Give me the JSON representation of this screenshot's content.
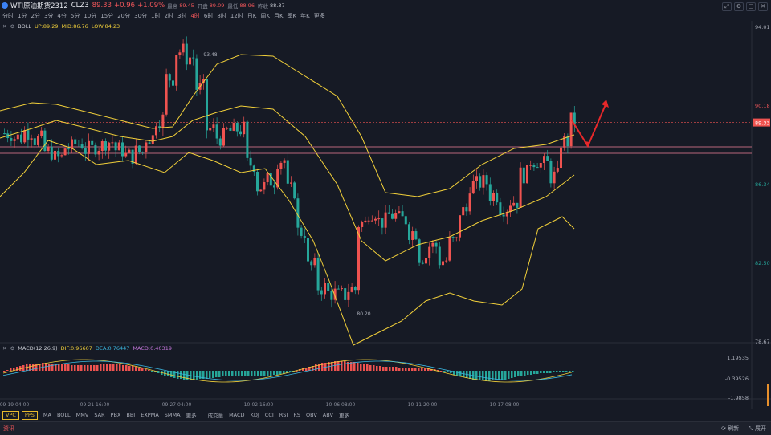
{
  "header": {
    "symbol": "WTI原油期货2312",
    "code": "CLZ3",
    "price": "89.33",
    "change": "+0.96",
    "change_pct": "+1.09%",
    "high_label": "最高",
    "high": "89.45",
    "open_label": "开盘",
    "open": "89.09",
    "low_label": "最低",
    "low": "88.96",
    "prev_label": "昨收",
    "prev": "88.37"
  },
  "timeframes": [
    "分时",
    "1分",
    "2分",
    "3分",
    "4分",
    "5分",
    "10分",
    "15分",
    "20分",
    "30分",
    "1时",
    "2时",
    "3时",
    "4时",
    "6时",
    "8时",
    "12时",
    "日K",
    "周K",
    "月K",
    "季K",
    "年K",
    "更多"
  ],
  "active_timeframe": "4时",
  "boll": {
    "name": "BOLL",
    "up_label": "UP:89.29",
    "mid_label": "MID:86.76",
    "low_label": "LOW:84.23"
  },
  "macd": {
    "name": "MACD(12,26,9)",
    "dif": "DIF:0.96607",
    "dea": "DEA:0.76447",
    "macd": "MACD:0.40319"
  },
  "price_axis": [
    "94.01",
    "90.18",
    "86.34",
    "82.50",
    "78.67"
  ],
  "current_price_tag": "89.33",
  "macd_axis": [
    "1.19535",
    "-0.39526",
    "-1.9858"
  ],
  "time_axis": [
    "09-19 04:00",
    "09-21 16:00",
    "09-27 04:00",
    "10-02 16:00",
    "10-06 08:00",
    "10-11 20:00",
    "10-17 08:00"
  ],
  "annotations": {
    "high": "93.48",
    "low": "80.20"
  },
  "bottom_left": [
    "VPC",
    "PPS"
  ],
  "indicators": [
    "MA",
    "BOLL",
    "MMV",
    "SAR",
    "PBX",
    "BBI",
    "EXPMA",
    "SMMA",
    "更多",
    "成交量",
    "MACD",
    "KDJ",
    "CCI",
    "RSI",
    "RS",
    "OBV",
    "ABV",
    "更多"
  ],
  "footer": {
    "news": "资讯",
    "refresh": "刷新",
    "expand": "展开"
  },
  "colors": {
    "up": "#ef5350",
    "down": "#26a69a",
    "boll": "#f2d03a",
    "bg": "#161a25"
  }
}
